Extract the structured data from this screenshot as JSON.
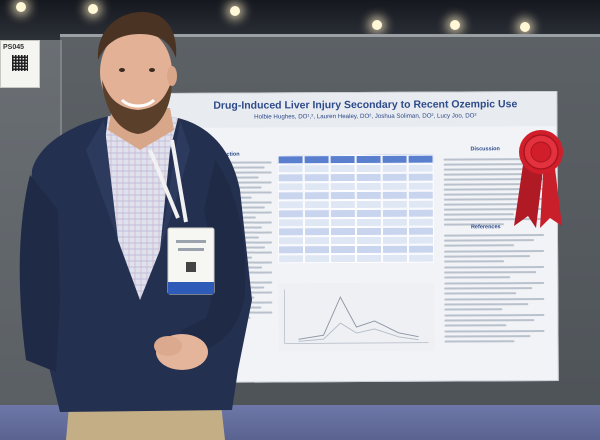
{
  "poster": {
    "title": "Drug-Induced Liver Injury Secondary to Recent Ozempic Use",
    "authors": "Holbie Hughes, DO¹,², Lauren Healey, DO², Joshua Soliman, DO², Lucy Joo, DO²",
    "sections": {
      "introduction": "Introduction",
      "discussion": "Discussion",
      "references": "References"
    }
  },
  "booth": {
    "tag": "PS045"
  },
  "colors": {
    "poster_accent": "#2d4a8a",
    "table_header": "#5a7fcf",
    "ribbon_red": "#d21e2b"
  }
}
